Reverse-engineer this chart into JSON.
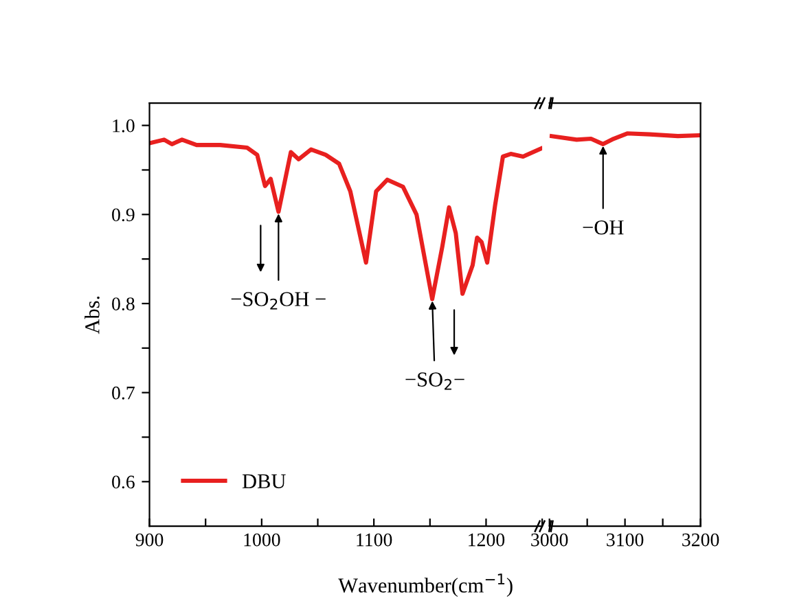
{
  "chart_data": [
    {
      "type": "line",
      "xlabel": "Wavenumber(cm$^{−1}$)",
      "ylabel": "Abs.",
      "legend": "lower left",
      "marker": "none",
      "line_style": "solid",
      "xlim": [
        900,
        1250
      ],
      "ylim": [
        0.55,
        1.025
      ],
      "xticks": [
        900,
        {
          "value": 950,
          "label": null
        },
        1000,
        {
          "value": 1050,
          "label": null
        },
        1100,
        {
          "value": 1150,
          "label": null
        },
        1200,
        {
          "value": 1250,
          "label": null
        }
      ],
      "yticks": [
        0.6,
        {
          "value": 0.65,
          "label": null
        },
        0.7,
        {
          "value": 0.75,
          "label": null
        },
        0.8,
        {
          "value": 0.85,
          "label": null
        },
        0.9,
        {
          "value": 0.95,
          "label": null
        },
        {
          "value": 1.0,
          "label": "1.0"
        }
      ],
      "annotations": [
        {
          "text": "−SO$_{2}$OH −",
          "x": 1015,
          "y": 0.903
        },
        {
          "text": "−SO$_{2}$−",
          "x": 1152,
          "y": 0.805
        }
      ],
      "series": [
        {
          "name": "DBU",
          "color": "#e8201f",
          "x": [
            900,
            913,
            920,
            929,
            942,
            963,
            987,
            996,
            1003,
            1008,
            1015,
            1026,
            1033,
            1044,
            1057,
            1069,
            1079,
            1093,
            1102,
            1112,
            1126,
            1138,
            1152,
            1161,
            1167,
            1173,
            1179,
            1188,
            1192,
            1196,
            1201,
            1208,
            1215,
            1222,
            1233,
            1249
          ],
          "values": [
            0.98,
            0.984,
            0.979,
            0.984,
            0.978,
            0.978,
            0.975,
            0.967,
            0.932,
            0.94,
            0.903,
            0.97,
            0.962,
            0.973,
            0.967,
            0.957,
            0.926,
            0.846,
            0.926,
            0.939,
            0.931,
            0.9,
            0.805,
            0.864,
            0.908,
            0.879,
            0.811,
            0.843,
            0.874,
            0.869,
            0.846,
            0.91,
            0.965,
            0.968,
            0.965,
            0.974
          ]
        }
      ]
    },
    {
      "type": "line",
      "marker": "none",
      "line_style": "solid",
      "tick_labels": "x",
      "xlim": [
        3000,
        3200
      ],
      "ylim": [
        0.55,
        1.025
      ],
      "xticks": [
        3000,
        {
          "value": 3050,
          "label": null
        },
        3100,
        {
          "value": 3150,
          "label": null
        },
        3200
      ],
      "annotations": [
        {
          "text": "−OH",
          "x": 3071,
          "y": 0.979
        }
      ],
      "series": [
        {
          "color": "#e8201f",
          "x": [
            3003,
            3036,
            3055,
            3071,
            3085,
            3103,
            3133,
            3170,
            3200
          ],
          "values": [
            0.988,
            0.984,
            0.985,
            0.979,
            0.985,
            0.991,
            0.99,
            0.988,
            0.989
          ]
        }
      ]
    }
  ]
}
